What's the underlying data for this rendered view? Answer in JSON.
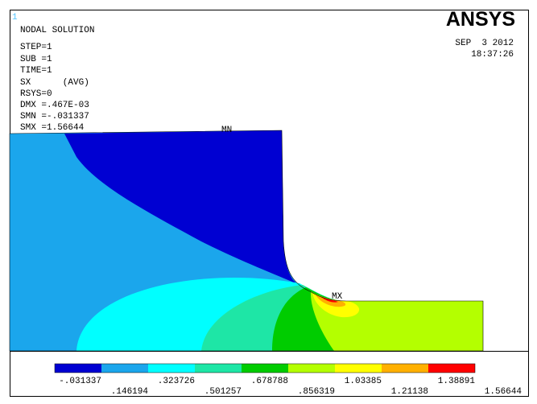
{
  "window_number": "1",
  "info": [
    "NODAL SOLUTION",
    "STEP=1",
    "SUB =1",
    "TIME=1",
    "SX      (AVG)",
    "RSYS=0",
    "DMX =.467E-03",
    "SMN =-.031337",
    "SMX =1.56644"
  ],
  "logo": "ANSYS",
  "date": "SEP  3 2012",
  "time": "18:37:26",
  "markers": {
    "min": "MN",
    "max": "MX"
  },
  "legend": {
    "colors": [
      "#0000d2",
      "#1ba6ec",
      "#00ffff",
      "#1ee6a6",
      "#00cc00",
      "#b4ff00",
      "#ffff00",
      "#ffb000",
      "#ff0000"
    ],
    "labels": [
      "-.031337",
      ".146194",
      ".323726",
      ".501257",
      ".678788",
      ".856319",
      "1.03385",
      "1.21138",
      "1.38891",
      "1.56644"
    ]
  }
}
